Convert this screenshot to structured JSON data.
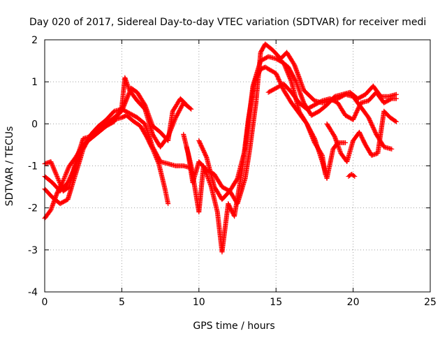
{
  "chart_data": {
    "type": "scatter",
    "title": "Day 020 of 2017, Sidereal Day-to-day VTEC variation (SDTVAR) for receiver medi",
    "xlabel": "GPS time / hours",
    "ylabel": "SDTVAR / TECUs",
    "xlim": [
      0,
      25
    ],
    "ylim": [
      -4,
      2
    ],
    "xticks": [
      "0",
      "5",
      "10",
      "15",
      "20",
      "25"
    ],
    "yticks": [
      "-4",
      "-3",
      "-2",
      "-1",
      "0",
      "1",
      "2"
    ],
    "grid": true,
    "legend": "none",
    "marker": "+",
    "color": "#ff0000",
    "series": [
      {
        "values": [
          [
            0.0,
            -0.95
          ],
          [
            0.4,
            -0.9
          ],
          [
            0.8,
            -1.25
          ],
          [
            1.2,
            -1.6
          ],
          [
            1.6,
            -1.5
          ],
          [
            2.0,
            -0.9
          ],
          [
            2.5,
            -0.35
          ],
          [
            3.0,
            -0.3
          ],
          [
            3.5,
            -0.15
          ],
          [
            4.0,
            -0.05
          ],
          [
            4.5,
            0.1
          ],
          [
            5.0,
            0.15
          ],
          [
            5.3,
            0.2
          ],
          [
            5.8,
            0.05
          ],
          [
            6.2,
            -0.05
          ],
          [
            6.6,
            -0.3
          ],
          [
            7.0,
            -0.6
          ],
          [
            7.4,
            -0.95
          ],
          [
            7.8,
            -1.55
          ],
          [
            8.0,
            -1.9
          ]
        ]
      },
      {
        "values": [
          [
            0.0,
            -1.55
          ],
          [
            0.5,
            -1.75
          ],
          [
            1.0,
            -1.9
          ],
          [
            1.5,
            -1.8
          ],
          [
            2.0,
            -1.2
          ],
          [
            2.5,
            -0.6
          ],
          [
            3.0,
            -0.25
          ],
          [
            3.5,
            -0.05
          ],
          [
            4.0,
            0.1
          ],
          [
            4.5,
            0.3
          ],
          [
            5.0,
            0.35
          ],
          [
            5.5,
            0.25
          ],
          [
            6.0,
            0.15
          ],
          [
            6.5,
            0.0
          ],
          [
            7.0,
            -0.55
          ],
          [
            7.5,
            -0.9
          ],
          [
            8.0,
            -0.95
          ],
          [
            8.5,
            -1.0
          ],
          [
            9.0,
            -1.0
          ],
          [
            9.5,
            -1.05
          ]
        ]
      },
      {
        "values": [
          [
            0.0,
            -2.25
          ],
          [
            0.4,
            -2.05
          ],
          [
            0.8,
            -1.65
          ],
          [
            1.2,
            -1.35
          ],
          [
            1.6,
            -1.0
          ],
          [
            2.0,
            -0.8
          ],
          [
            2.5,
            -0.5
          ],
          [
            3.0,
            -0.35
          ],
          [
            3.5,
            -0.2
          ],
          [
            4.0,
            -0.05
          ],
          [
            4.5,
            0.05
          ],
          [
            5.0,
            0.4
          ],
          [
            5.2,
            1.1
          ],
          [
            5.5,
            0.8
          ],
          [
            6.0,
            0.55
          ],
          [
            6.5,
            0.35
          ],
          [
            7.0,
            -0.25
          ],
          [
            7.5,
            -0.55
          ],
          [
            8.0,
            -0.3
          ],
          [
            8.5,
            0.15
          ],
          [
            9.0,
            0.5
          ],
          [
            9.5,
            0.35
          ]
        ]
      },
      {
        "values": [
          [
            0.0,
            -1.25
          ],
          [
            0.5,
            -1.4
          ],
          [
            1.0,
            -1.6
          ],
          [
            1.5,
            -1.4
          ],
          [
            2.0,
            -1.0
          ],
          [
            2.5,
            -0.55
          ],
          [
            3.0,
            -0.3
          ],
          [
            3.5,
            -0.1
          ],
          [
            4.0,
            0.0
          ],
          [
            4.5,
            0.15
          ],
          [
            5.0,
            0.3
          ],
          [
            5.6,
            0.85
          ],
          [
            6.0,
            0.75
          ],
          [
            6.5,
            0.45
          ],
          [
            7.0,
            -0.05
          ],
          [
            7.5,
            -0.2
          ],
          [
            8.0,
            -0.4
          ],
          [
            8.3,
            0.3
          ],
          [
            8.8,
            0.6
          ],
          [
            9.2,
            0.45
          ]
        ]
      },
      {
        "values": [
          [
            9.0,
            -0.25
          ],
          [
            9.3,
            -0.7
          ],
          [
            9.6,
            -1.4
          ],
          [
            10.0,
            -0.9
          ],
          [
            10.5,
            -1.1
          ],
          [
            11.0,
            -1.2
          ],
          [
            11.5,
            -1.5
          ],
          [
            12.0,
            -1.6
          ],
          [
            12.5,
            -1.3
          ],
          [
            13.0,
            -0.6
          ],
          [
            13.5,
            0.9
          ],
          [
            14.0,
            1.5
          ],
          [
            14.5,
            1.6
          ],
          [
            15.0,
            1.55
          ],
          [
            15.5,
            1.45
          ],
          [
            16.0,
            1.0
          ],
          [
            16.5,
            0.3
          ],
          [
            17.0,
            0.0
          ],
          [
            17.5,
            -0.35
          ],
          [
            18.0,
            -0.9
          ],
          [
            18.3,
            -1.3
          ],
          [
            18.7,
            -0.6
          ],
          [
            19.0,
            -0.45
          ],
          [
            19.5,
            -0.45
          ]
        ]
      },
      {
        "values": [
          [
            9.2,
            -0.55
          ],
          [
            9.5,
            -1.0
          ],
          [
            10.0,
            -2.1
          ],
          [
            10.3,
            -1.0
          ],
          [
            10.8,
            -1.5
          ],
          [
            11.2,
            -2.1
          ],
          [
            11.5,
            -3.05
          ],
          [
            11.9,
            -1.9
          ],
          [
            12.3,
            -2.2
          ],
          [
            12.8,
            -1.1
          ],
          [
            13.2,
            0.1
          ],
          [
            13.6,
            1.0
          ],
          [
            14.0,
            1.3
          ],
          [
            14.3,
            1.35
          ],
          [
            15.0,
            1.2
          ],
          [
            15.5,
            0.8
          ],
          [
            16.0,
            0.5
          ],
          [
            16.5,
            0.25
          ],
          [
            17.0,
            0.0
          ],
          [
            17.5,
            -0.45
          ],
          [
            18.0,
            -0.75
          ],
          [
            18.2,
            -1.2
          ]
        ]
      },
      {
        "values": [
          [
            10.0,
            -0.4
          ],
          [
            10.5,
            -0.8
          ],
          [
            11.0,
            -1.5
          ],
          [
            11.5,
            -1.8
          ],
          [
            12.0,
            -1.6
          ],
          [
            12.5,
            -1.9
          ],
          [
            13.0,
            -1.3
          ],
          [
            13.3,
            -0.6
          ],
          [
            13.7,
            0.5
          ],
          [
            14.0,
            1.7
          ],
          [
            14.3,
            1.9
          ],
          [
            14.8,
            1.75
          ],
          [
            15.3,
            1.55
          ],
          [
            15.7,
            1.7
          ],
          [
            16.2,
            1.4
          ],
          [
            16.8,
            0.8
          ],
          [
            17.5,
            0.55
          ],
          [
            18.0,
            0.5
          ],
          [
            18.5,
            0.55
          ],
          [
            19.0,
            0.6
          ],
          [
            19.5,
            0.7
          ],
          [
            20.0,
            0.65
          ],
          [
            20.5,
            0.4
          ],
          [
            21.0,
            0.15
          ],
          [
            21.5,
            -0.25
          ],
          [
            22.0,
            -0.55
          ],
          [
            22.5,
            -0.6
          ]
        ]
      },
      {
        "values": [
          [
            14.5,
            0.75
          ],
          [
            15.0,
            0.85
          ],
          [
            15.5,
            0.95
          ],
          [
            16.0,
            0.75
          ],
          [
            16.5,
            0.5
          ],
          [
            17.0,
            0.35
          ],
          [
            17.5,
            0.45
          ],
          [
            18.0,
            0.55
          ],
          [
            18.5,
            0.6
          ],
          [
            19.0,
            0.5
          ],
          [
            19.5,
            0.2
          ],
          [
            20.0,
            0.1
          ],
          [
            20.5,
            0.5
          ],
          [
            21.0,
            0.55
          ],
          [
            21.5,
            0.75
          ],
          [
            22.0,
            0.5
          ],
          [
            22.5,
            0.6
          ],
          [
            22.8,
            0.6
          ]
        ]
      },
      {
        "values": [
          [
            15.3,
            1.5
          ],
          [
            15.8,
            1.35
          ],
          [
            16.3,
            1.0
          ],
          [
            16.8,
            0.5
          ],
          [
            17.3,
            0.2
          ],
          [
            17.8,
            0.3
          ],
          [
            18.3,
            0.45
          ],
          [
            18.8,
            0.65
          ],
          [
            19.3,
            0.7
          ],
          [
            19.8,
            0.75
          ],
          [
            20.3,
            0.6
          ],
          [
            20.8,
            0.7
          ],
          [
            21.3,
            0.9
          ],
          [
            21.8,
            0.65
          ],
          [
            22.3,
            0.65
          ],
          [
            22.8,
            0.7
          ]
        ]
      },
      {
        "values": [
          [
            18.3,
            0.0
          ],
          [
            18.8,
            -0.3
          ],
          [
            19.2,
            -0.7
          ],
          [
            19.6,
            -0.9
          ],
          [
            20.0,
            -0.4
          ],
          [
            20.4,
            -0.2
          ],
          [
            20.8,
            -0.5
          ],
          [
            21.2,
            -0.75
          ],
          [
            21.6,
            -0.7
          ],
          [
            22.0,
            0.3
          ],
          [
            22.4,
            0.15
          ],
          [
            22.8,
            0.05
          ]
        ]
      },
      {
        "values": [
          [
            19.7,
            -1.25
          ],
          [
            19.9,
            -1.2
          ],
          [
            20.1,
            -1.25
          ]
        ]
      }
    ]
  }
}
